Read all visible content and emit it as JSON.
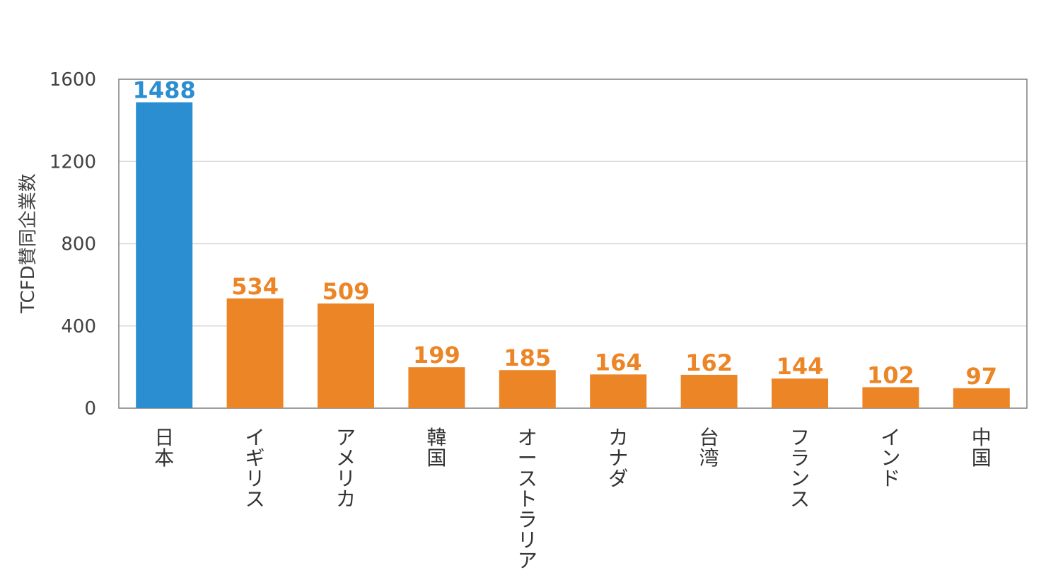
{
  "chart_data": {
    "type": "bar",
    "title": "",
    "xlabel": "",
    "ylabel": "TCFD賛同企業数",
    "ylim": [
      0,
      1600
    ],
    "yticks": [
      "0",
      "400",
      "800",
      "1200",
      "1600"
    ],
    "grid": true,
    "categories": [
      "日本",
      "イギリス",
      "アメリカ",
      "韓国",
      "オーストラリア",
      "カナダ",
      "台湾",
      "フランス",
      "インド",
      "中国"
    ],
    "values": [
      1488,
      534,
      509,
      199,
      185,
      164,
      162,
      144,
      102,
      97
    ],
    "value_labels": [
      "1488",
      "534",
      "509",
      "199",
      "185",
      "164",
      "162",
      "144",
      "102",
      "97"
    ],
    "highlight_color": "#2B8ED0",
    "bar_color": "#EC8525"
  }
}
